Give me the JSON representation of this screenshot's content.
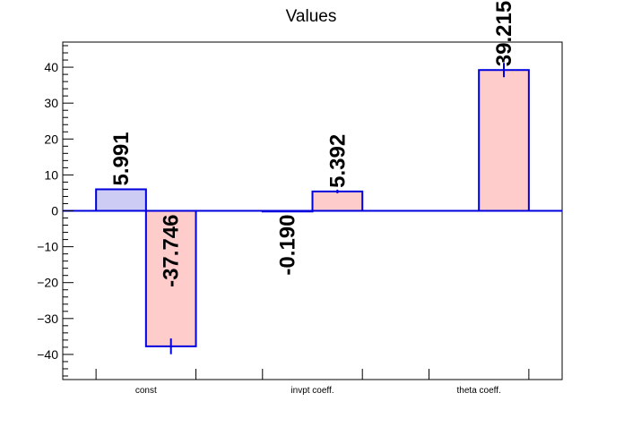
{
  "chart_data": {
    "type": "bar",
    "title": "Values",
    "xlabel": "",
    "ylabel": "",
    "ylim": [
      -47,
      47
    ],
    "yticks": [
      -40,
      -30,
      -20,
      -10,
      0,
      10,
      20,
      30,
      40
    ],
    "categories": [
      "const",
      "invpt coeff.",
      "theta coeff."
    ],
    "bars": [
      {
        "category": "const",
        "slot": 0,
        "value": 5.991,
        "label": "5.991",
        "error": 0,
        "style": "blue"
      },
      {
        "category": "const",
        "slot": 1,
        "value": -37.746,
        "label": "-37.746",
        "error": 2.2,
        "style": "red"
      },
      {
        "category": "invpt coeff.",
        "slot": 0,
        "value": -0.19,
        "label": "-0.190",
        "error": 0,
        "style": "blue"
      },
      {
        "category": "invpt coeff.",
        "slot": 1,
        "value": 5.392,
        "label": "5.392",
        "error": 0.5,
        "style": "red"
      },
      {
        "category": "theta coeff.",
        "slot": 0,
        "value": 0,
        "label": "",
        "error": 0,
        "style": "blue"
      },
      {
        "category": "theta coeff.",
        "slot": 1,
        "value": 39.215,
        "label": "39.215",
        "error": 2.0,
        "style": "red"
      }
    ],
    "colors": {
      "blue_fill": "#ccccf5",
      "red_fill": "#ffcccc",
      "outline": "#0000dd",
      "axis": "#000000"
    },
    "grid": false,
    "legend": "none"
  }
}
